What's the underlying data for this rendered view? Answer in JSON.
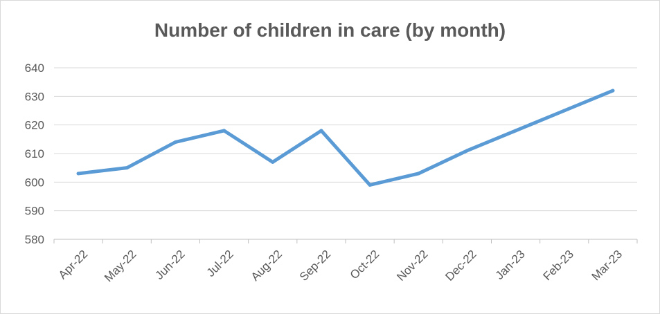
{
  "chart_data": {
    "type": "line",
    "title": "Number of children in care (by month)",
    "xlabel": "",
    "ylabel": "",
    "categories": [
      "Apr-22",
      "May-22",
      "Jun-22",
      "Jul-22",
      "Aug-22",
      "Sep-22",
      "Oct-22",
      "Nov-22",
      "Dec-22",
      "Jan-23",
      "Feb-23",
      "Mar-23"
    ],
    "series": [
      {
        "values": [
          603,
          605,
          614,
          618,
          607,
          618,
          599,
          603,
          611,
          618,
          625,
          632
        ]
      }
    ],
    "ylim": [
      580,
      640
    ],
    "yticks": [
      580,
      590,
      600,
      610,
      620,
      630,
      640
    ],
    "grid": true,
    "legend": "none",
    "line_color": "#5b9bd5",
    "grid_color": "#d9d9d9",
    "text_color": "#595959"
  }
}
